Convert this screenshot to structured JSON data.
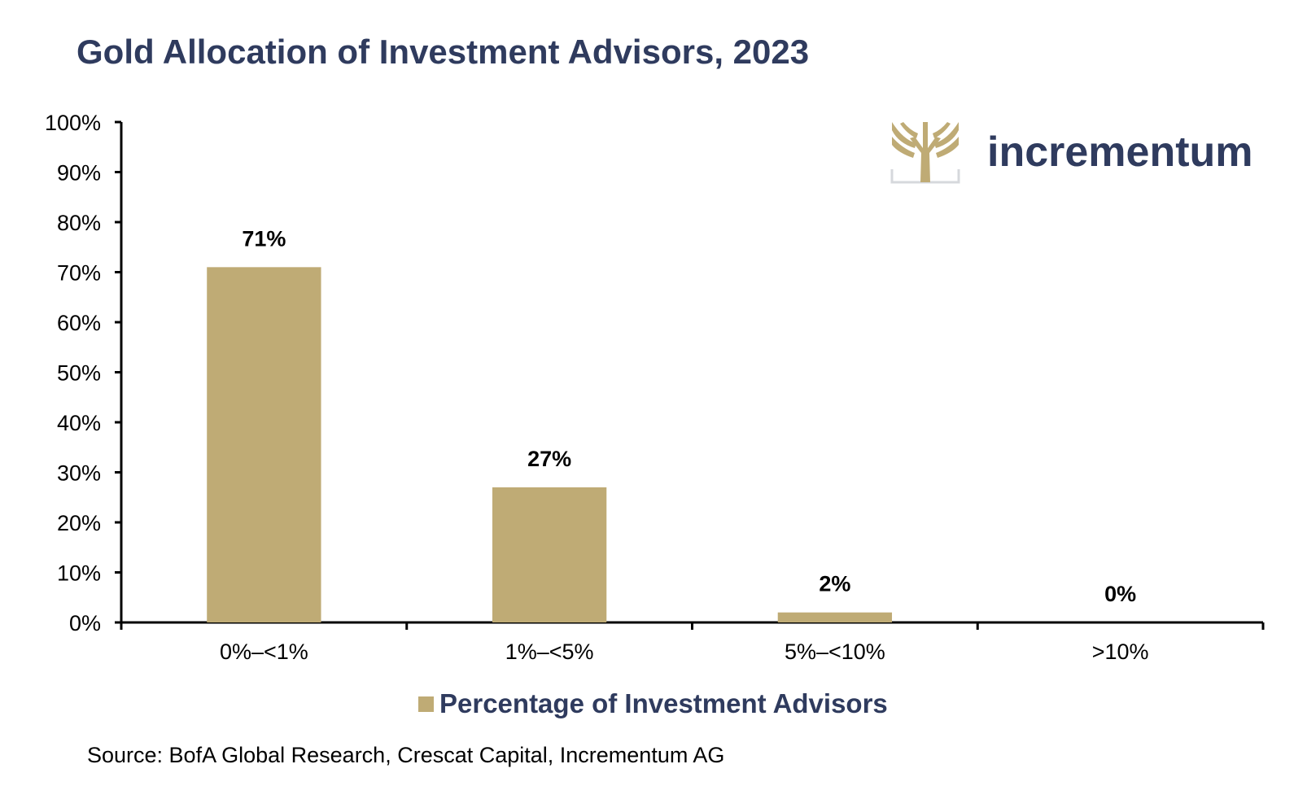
{
  "chart_data": {
    "type": "bar",
    "title": "Gold Allocation of Investment Advisors, 2023",
    "categories": [
      "0%–<1%",
      "1%–<5%",
      "5%–<10%",
      ">10%"
    ],
    "series": [
      {
        "name": "Percentage of Investment Advisors",
        "values": [
          71,
          27,
          2,
          0
        ]
      }
    ],
    "data_labels": [
      "71%",
      "27%",
      "2%",
      "0%"
    ],
    "y_ticks": [
      "0%",
      "10%",
      "20%",
      "30%",
      "40%",
      "50%",
      "60%",
      "70%",
      "80%",
      "90%",
      "100%"
    ],
    "ylim": [
      0,
      100
    ],
    "grid": false,
    "legend_position": "bottom",
    "xlabel": "",
    "ylabel": ""
  },
  "source": "Source: BofA Global Research, Crescat Capital, Incrementum AG",
  "brand": {
    "name": "incrementum",
    "logo_icon": "tree-logo-icon"
  },
  "colors": {
    "bar": "#BFAB75",
    "title": "#2F3B5E",
    "brand": "#2F3B5E",
    "axis": "#000000"
  }
}
